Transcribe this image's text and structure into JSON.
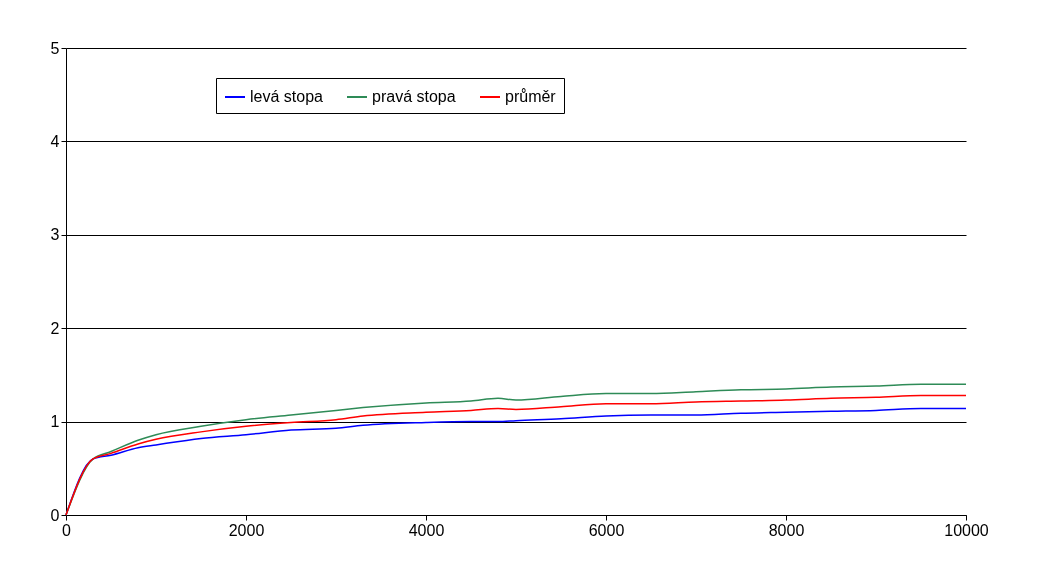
{
  "chart_data": {
    "type": "line",
    "x": [
      0,
      300,
      500,
      800,
      1000,
      1500,
      2000,
      2500,
      3000,
      3300,
      4000,
      4500,
      4800,
      5000,
      5500,
      6000,
      6500,
      7000,
      7500,
      8000,
      8500,
      9000,
      9500,
      10000
    ],
    "series": [
      {
        "name": "levá stopa",
        "color": "#0000ff",
        "values": [
          0,
          0.6,
          0.64,
          0.72,
          0.75,
          0.82,
          0.86,
          0.91,
          0.93,
          0.96,
          0.99,
          1.0,
          1.0,
          1.01,
          1.03,
          1.06,
          1.07,
          1.07,
          1.09,
          1.1,
          1.11,
          1.12,
          1.14,
          1.14
        ]
      },
      {
        "name": "pravá stopa",
        "color": "#2e8b57",
        "values": [
          0,
          0.6,
          0.68,
          0.8,
          0.86,
          0.95,
          1.02,
          1.07,
          1.12,
          1.15,
          1.2,
          1.22,
          1.25,
          1.23,
          1.27,
          1.3,
          1.3,
          1.32,
          1.34,
          1.35,
          1.37,
          1.38,
          1.4,
          1.4
        ]
      },
      {
        "name": "průměr",
        "color": "#ff0000",
        "values": [
          0,
          0.6,
          0.66,
          0.76,
          0.81,
          0.89,
          0.95,
          0.99,
          1.02,
          1.06,
          1.1,
          1.12,
          1.14,
          1.13,
          1.16,
          1.19,
          1.19,
          1.21,
          1.22,
          1.23,
          1.25,
          1.26,
          1.28,
          1.28
        ]
      }
    ],
    "xlim": [
      0,
      10000
    ],
    "xticks": [
      0,
      2000,
      4000,
      6000,
      8000,
      10000
    ],
    "ylim": [
      0,
      5
    ],
    "yticks": [
      0,
      1,
      2,
      3,
      4,
      5
    ],
    "grid": "y",
    "legend": "top",
    "marker": "none",
    "line_style": "solid"
  }
}
